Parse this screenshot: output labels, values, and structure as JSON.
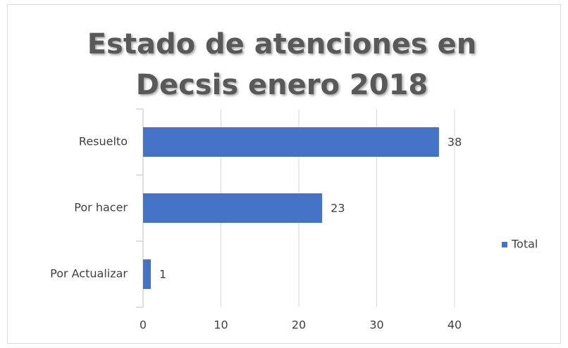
{
  "chart_data": {
    "type": "bar",
    "orientation": "horizontal",
    "title": "Estado de atenciones en Decsis enero 2018",
    "categories": [
      "Resuelto",
      "Por hacer",
      "Por Actualizar"
    ],
    "series": [
      {
        "name": "Total",
        "color": "#4472c4",
        "values": [
          38,
          23,
          1
        ]
      }
    ],
    "xlim": [
      0,
      40
    ],
    "xticks": [
      0,
      10,
      20,
      30,
      40
    ],
    "grid": true,
    "legend": "right"
  }
}
